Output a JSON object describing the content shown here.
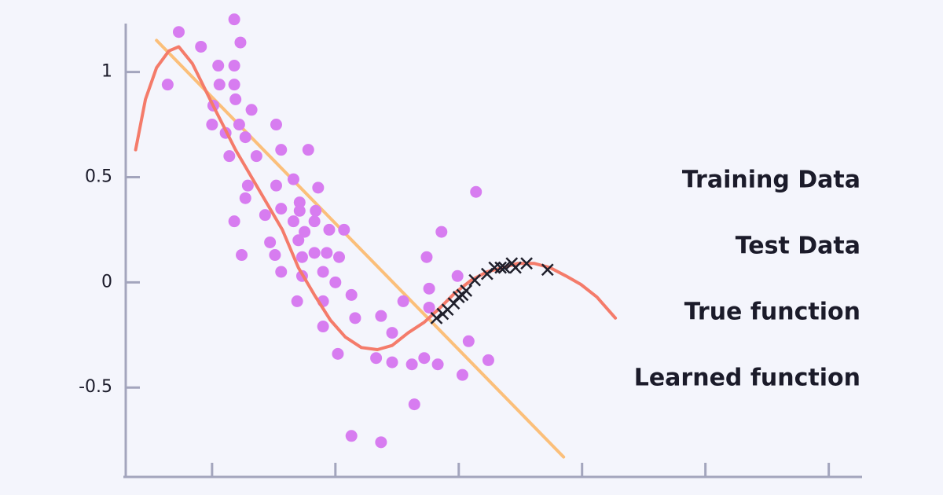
{
  "chart_data": {
    "type": "scatter",
    "xlim": [
      0.3,
      6.27
    ],
    "ylim": [
      -0.925,
      1.23
    ],
    "xticks": [
      1,
      2,
      3,
      4,
      5,
      6
    ],
    "yticks": [
      1,
      0.5,
      0,
      -0.5
    ],
    "axis_color": "#a3a5bd",
    "series": [
      {
        "name": "Training Data",
        "color": "#d77cf0",
        "mode": "markers",
        "marker": "circle",
        "x": [
          0.64,
          0.73,
          0.91,
          1.18,
          1.23,
          1.05,
          1.18,
          1.06,
          1.18,
          1.19,
          1.01,
          1.0,
          1.11,
          1.22,
          1.27,
          1.14,
          1.32,
          1.52,
          1.56,
          1.78,
          1.36,
          1.66,
          1.52,
          1.29,
          1.27,
          1.86,
          1.71,
          1.71,
          1.56,
          1.84,
          1.43,
          1.66,
          1.83,
          1.18,
          2.07,
          1.95,
          1.75,
          1.7,
          1.47,
          1.24,
          1.51,
          1.83,
          1.93,
          1.73,
          2.03,
          1.56,
          1.9,
          1.73,
          2.0,
          2.86,
          3.14,
          2.74,
          2.99,
          2.76,
          2.55,
          1.69,
          1.9,
          2.13,
          2.76,
          2.16,
          2.37,
          1.9,
          2.46,
          3.08,
          2.02,
          2.33,
          2.46,
          2.72,
          2.62,
          2.83,
          3.24,
          3.03,
          2.64,
          2.13,
          2.37
        ],
        "values": [
          0.94,
          1.19,
          1.12,
          1.25,
          1.14,
          1.03,
          1.03,
          0.94,
          0.94,
          0.87,
          0.84,
          0.75,
          0.71,
          0.75,
          0.69,
          0.6,
          0.82,
          0.75,
          0.63,
          0.63,
          0.6,
          0.49,
          0.46,
          0.46,
          0.4,
          0.45,
          0.38,
          0.34,
          0.35,
          0.34,
          0.32,
          0.29,
          0.29,
          0.29,
          0.25,
          0.25,
          0.24,
          0.2,
          0.19,
          0.13,
          0.13,
          0.14,
          0.14,
          0.12,
          0.12,
          0.05,
          0.05,
          0.03,
          0.0,
          0.24,
          0.43,
          0.12,
          0.03,
          -0.03,
          -0.09,
          -0.09,
          -0.09,
          -0.06,
          -0.12,
          -0.17,
          -0.16,
          -0.21,
          -0.24,
          -0.28,
          -0.34,
          -0.36,
          -0.38,
          -0.36,
          -0.39,
          -0.39,
          -0.37,
          -0.44,
          -0.58,
          -0.73,
          -0.76
        ]
      },
      {
        "name": "Test Data",
        "color": "#1f1f2b",
        "mode": "markers",
        "marker": "x",
        "x": [
          2.82,
          2.87,
          2.91,
          2.96,
          3.0,
          3.03,
          3.06,
          3.13,
          3.23,
          3.29,
          3.34,
          3.37,
          3.43,
          3.46,
          3.55,
          3.72
        ],
        "values": [
          -0.17,
          -0.15,
          -0.13,
          -0.1,
          -0.07,
          -0.06,
          -0.04,
          0.01,
          0.04,
          0.07,
          0.07,
          0.07,
          0.09,
          0.07,
          0.09,
          0.06
        ]
      },
      {
        "name": "True function",
        "color": "#f47b6a",
        "mode": "line",
        "x": [
          0.38,
          0.46,
          0.55,
          0.65,
          0.73,
          0.84,
          1.0,
          1.19,
          1.38,
          1.57,
          1.7,
          1.83,
          1.96,
          2.08,
          2.21,
          2.34,
          2.46,
          2.59,
          2.72,
          2.85,
          2.97,
          3.1,
          3.23,
          3.36,
          3.48,
          3.61,
          3.74,
          3.87,
          3.99,
          4.12,
          4.27
        ],
        "values": [
          0.63,
          0.87,
          1.02,
          1.1,
          1.12,
          1.04,
          0.85,
          0.63,
          0.44,
          0.25,
          0.07,
          -0.06,
          -0.18,
          -0.26,
          -0.31,
          -0.32,
          -0.3,
          -0.24,
          -0.19,
          -0.12,
          -0.05,
          0.01,
          0.05,
          0.07,
          0.09,
          0.09,
          0.07,
          0.03,
          -0.01,
          -0.07,
          -0.17
        ]
      },
      {
        "name": "Learned function",
        "color": "#fbbf7a",
        "mode": "line",
        "x": [
          0.55,
          3.85
        ],
        "values": [
          1.15,
          -0.83
        ]
      }
    ],
    "draw_order": [
      3,
      0,
      2,
      1
    ]
  }
}
